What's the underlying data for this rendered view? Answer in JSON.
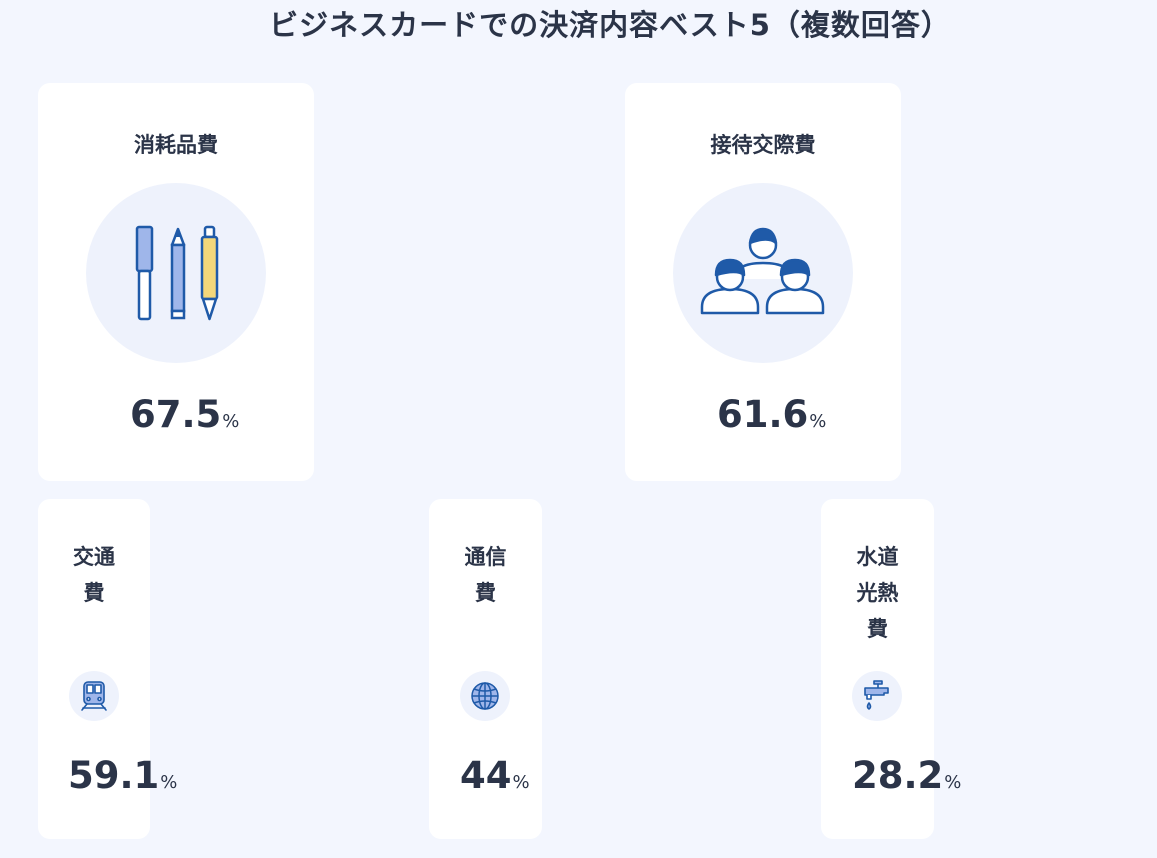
{
  "title": "ビジネスカードでの決済内容ベスト5（複数回答）",
  "chart_data": {
    "type": "table",
    "title": "ビジネスカードでの決済内容ベスト5（複数回答）",
    "unit": "%",
    "items": [
      {
        "rank": 1,
        "label": "消耗品費",
        "value": 67.5,
        "icon": "stationery-icon"
      },
      {
        "rank": 2,
        "label": "接待交際費",
        "value": 61.6,
        "icon": "people-icon"
      },
      {
        "rank": 3,
        "label_lines": [
          "交通",
          "費"
        ],
        "value": 59.1,
        "icon": "train-icon"
      },
      {
        "rank": 4,
        "label_lines": [
          "通信",
          "費"
        ],
        "value": 44,
        "icon": "globe-icon"
      },
      {
        "rank": 5,
        "label_lines": [
          "水道",
          "光熱",
          "費"
        ],
        "value": 28.2,
        "icon": "faucet-icon"
      }
    ]
  },
  "colors": {
    "background": "#f3f6fe",
    "card": "#ffffff",
    "icon_circle": "#eef2fc",
    "icon_stroke": "#1f5aa8",
    "icon_fill": "#9fb6ea",
    "pen_fill": "#f3d77a",
    "text": "#2b3448"
  }
}
